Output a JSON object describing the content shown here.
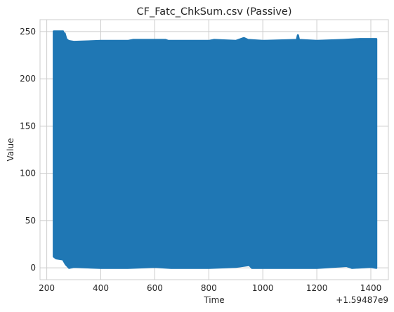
{
  "chart_data": {
    "type": "line",
    "title": "CF_Fatc_ChkSum.csv (Passive)",
    "xlabel": "Time",
    "ylabel": "Value",
    "x_offset_label": "+1.59487e9",
    "xlim": [
      175,
      1465
    ],
    "ylim": [
      -12.5,
      262.5
    ],
    "xticks": [
      200,
      400,
      600,
      800,
      1000,
      1200,
      1400
    ],
    "yticks": [
      0,
      50,
      100,
      150,
      200,
      250
    ],
    "grid": true,
    "series": [
      {
        "color": "#1f77b4",
        "x_range": [
          226,
          1420
        ],
        "min_value": 0,
        "max_value": 250,
        "typical_band": [
          1,
          241
        ],
        "top_profile": [
          [
            226,
            250
          ],
          [
            260,
            250
          ],
          [
            262,
            245
          ],
          [
            266,
            248
          ],
          [
            272,
            242
          ],
          [
            280,
            240
          ],
          [
            300,
            239
          ],
          [
            400,
            240
          ],
          [
            500,
            240
          ],
          [
            520,
            241
          ],
          [
            640,
            241
          ],
          [
            650,
            240
          ],
          [
            800,
            240
          ],
          [
            820,
            241
          ],
          [
            900,
            240
          ],
          [
            930,
            243
          ],
          [
            945,
            241
          ],
          [
            1000,
            240
          ],
          [
            1126,
            241
          ],
          [
            1130,
            246
          ],
          [
            1134,
            241
          ],
          [
            1200,
            240
          ],
          [
            1300,
            241
          ],
          [
            1360,
            242
          ],
          [
            1420,
            242
          ]
        ],
        "bottom_profile": [
          [
            226,
            12
          ],
          [
            235,
            10
          ],
          [
            260,
            9
          ],
          [
            270,
            4
          ],
          [
            283,
            0
          ],
          [
            300,
            1
          ],
          [
            400,
            0
          ],
          [
            500,
            0
          ],
          [
            600,
            1
          ],
          [
            660,
            0
          ],
          [
            800,
            0
          ],
          [
            900,
            1
          ],
          [
            950,
            3
          ],
          [
            960,
            0
          ],
          [
            1100,
            0
          ],
          [
            1200,
            0
          ],
          [
            1310,
            2
          ],
          [
            1330,
            0
          ],
          [
            1400,
            1
          ],
          [
            1420,
            0
          ]
        ]
      }
    ]
  }
}
